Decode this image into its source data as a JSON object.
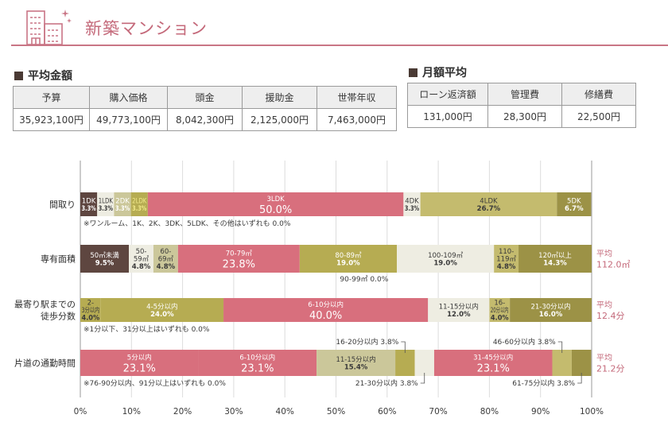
{
  "header": {
    "title": "新築マンション",
    "icon": "building-icon"
  },
  "avg_amount": {
    "title": "平均金額",
    "columns": [
      "予算",
      "購入価格",
      "頭金",
      "援助金",
      "世帯年収"
    ],
    "values": [
      "35,923,100円",
      "49,773,100円",
      "8,042,300円",
      "2,125,000円",
      "7,463,000円"
    ]
  },
  "monthly_avg": {
    "title": "月額平均",
    "columns": [
      "ローン返済額",
      "管理費",
      "修繕費"
    ],
    "values": [
      "131,000円",
      "28,300円",
      "22,500円"
    ]
  },
  "colors": {
    "dark_brown": "#5e4640",
    "light_cream": "#eeede2",
    "light_khaki": "#cbc79a",
    "olive": "#b6ac52",
    "pink": "#d86f7d",
    "khaki": "#c4bb6e",
    "dark_olive": "#9c9246",
    "avg_text": "#c4697a"
  },
  "chart_data": {
    "type": "bar",
    "orientation": "horizontal-stacked-100",
    "xlabel": "",
    "xlim": [
      0,
      100
    ],
    "ticks": [
      "0%",
      "10%",
      "20%",
      "30%",
      "40%",
      "50%",
      "60%",
      "70%",
      "80%",
      "90%",
      "100%"
    ],
    "grid": true,
    "rows": [
      {
        "label": [
          "間取り"
        ],
        "segments": [
          {
            "name": "1DK",
            "value": 3.3,
            "display": "3.3%",
            "color": "dark_brown",
            "text": "light"
          },
          {
            "name": "1LDK",
            "value": 3.3,
            "display": "3.3%",
            "color": "light_cream",
            "text": "dark"
          },
          {
            "name": "2DK",
            "value": 3.3,
            "display": "3.3%",
            "color": "light_khaki",
            "text": "light"
          },
          {
            "name": "2LDK",
            "value": 3.3,
            "display": "3.3%",
            "color": "olive",
            "text": "yellow"
          },
          {
            "name": "3LDK",
            "value": 50.0,
            "display": "50.0%",
            "color": "pink",
            "text": "light",
            "big": true
          },
          {
            "name": "4DK",
            "value": 3.3,
            "display": "3.3%",
            "color": "light_cream",
            "text": "dark"
          },
          {
            "name": "4LDK",
            "value": 26.7,
            "display": "26.7%",
            "color": "khaki",
            "text": "dark"
          },
          {
            "name": "5DK",
            "value": 6.7,
            "display": "6.7%",
            "color": "dark_olive",
            "text": "light"
          }
        ],
        "note": "※ワンルーム、1K、2K、3DK、5LDK、その他はいずれも 0.0%",
        "average": null
      },
      {
        "label": [
          "専有面積"
        ],
        "segments": [
          {
            "name": "50㎡未満",
            "value": 9.5,
            "display": "9.5%",
            "color": "dark_brown",
            "text": "light"
          },
          {
            "name": "50-59㎡",
            "value": 4.8,
            "display": "4.8%",
            "color": "light_cream",
            "text": "dark"
          },
          {
            "name": "60-69㎡",
            "value": 4.8,
            "display": "4.8%",
            "color": "light_khaki",
            "text": "dark"
          },
          {
            "name": "70-79㎡",
            "value": 23.8,
            "display": "23.8%",
            "color": "pink",
            "text": "light",
            "big": true
          },
          {
            "name": "80-89㎡",
            "value": 19.0,
            "display": "19.0%",
            "color": "olive",
            "text": "light"
          },
          {
            "name": "100-109㎡",
            "value": 19.0,
            "display": "19.0%",
            "color": "light_cream",
            "text": "dark"
          },
          {
            "name": "110-119㎡",
            "value": 4.8,
            "display": "4.8%",
            "color": "khaki",
            "text": "dark"
          },
          {
            "name": "120㎡以上",
            "value": 14.3,
            "display": "14.3%",
            "color": "dark_olive",
            "text": "light"
          }
        ],
        "note": "90-99㎡ 0.0%",
        "average": {
          "label": "平均",
          "value": "112.0㎡"
        }
      },
      {
        "label": [
          "最寄り駅までの",
          "徒歩分数"
        ],
        "segments": [
          {
            "name": "2-3分以内",
            "value": 4.0,
            "display": "4.0%",
            "color": "olive",
            "text": "dark"
          },
          {
            "name": "4-5分以内",
            "value": 24.0,
            "display": "24.0%",
            "color": "olive",
            "text": "light"
          },
          {
            "name": "6-10分以内",
            "value": 40.0,
            "display": "40.0%",
            "color": "pink",
            "text": "light",
            "big": true
          },
          {
            "name": "11-15分以内",
            "value": 12.0,
            "display": "12.0%",
            "color": "light_cream",
            "text": "dark"
          },
          {
            "name": "16-20分以内",
            "value": 4.0,
            "display": "4.0%",
            "color": "khaki",
            "text": "dark"
          },
          {
            "name": "21-30分以内",
            "value": 16.0,
            "display": "16.0%",
            "color": "dark_olive",
            "text": "light"
          }
        ],
        "note": "※1分以下、31分以上はいずれも 0.0%",
        "average": {
          "label": "平均",
          "value": "12.4分"
        }
      },
      {
        "label": [
          "片道の通勤時間"
        ],
        "segments": [
          {
            "name": "5分以内",
            "value": 23.1,
            "display": "23.1%",
            "color": "pink",
            "text": "light",
            "big": true
          },
          {
            "name": "6-10分以内",
            "value": 23.1,
            "display": "23.1%",
            "color": "pink",
            "text": "light",
            "big": true
          },
          {
            "name": "11-15分以内",
            "value": 15.4,
            "display": "15.4%",
            "color": "light_khaki",
            "text": "dark"
          },
          {
            "name": "16-20分以内",
            "value": 3.8,
            "display": "3.8%",
            "color": "olive",
            "text": "none",
            "callout": "top"
          },
          {
            "name": "21-30分以内",
            "value": 3.8,
            "display": "3.8%",
            "color": "light_cream",
            "text": "none",
            "callout": "bottom"
          },
          {
            "name": "31-45分以内",
            "value": 23.1,
            "display": "23.1%",
            "color": "pink",
            "text": "light",
            "big": true
          },
          {
            "name": "46-60分以内",
            "value": 3.8,
            "display": "3.8%",
            "color": "khaki",
            "text": "none",
            "callout": "top"
          },
          {
            "name": "61-75分以内",
            "value": 3.8,
            "display": "3.8%",
            "color": "dark_olive",
            "text": "none",
            "callout": "bottom"
          }
        ],
        "note": "※76-90分以内、91分以上はいずれも 0.0%",
        "average": {
          "label": "平均",
          "value": "21.2分"
        }
      }
    ]
  }
}
